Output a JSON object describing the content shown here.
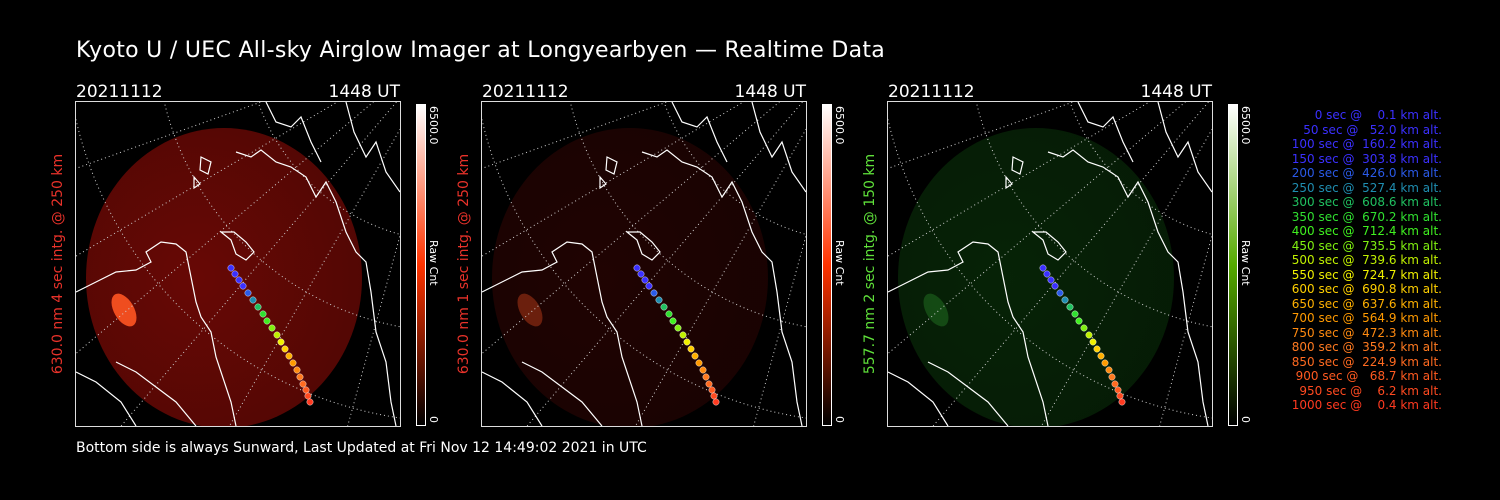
{
  "title": "Kyoto U / UEC All-sky Airglow Imager at Longyearbyen — Realtime Data",
  "footer": "Bottom side is always Sunward, Last Updated at Fri Nov 12 14:49:02 2021 in UTC",
  "panels": [
    {
      "date": "20211112",
      "time": "1448 UT",
      "ylabel": "630.0 nm 4 sec intg. @ 250 km",
      "label_color": "#e8322a",
      "colorbar": {
        "max": "6500.0",
        "min": "0",
        "unit": "Raw Cnt",
        "gradient": [
          "#000000",
          "#ff3300",
          "#ffffff"
        ]
      },
      "image_color": "#7a0a06",
      "image_intensity": 0.85,
      "aurora_patch": true
    },
    {
      "date": "20211112",
      "time": "1448 UT",
      "ylabel": "630.0 nm 1 sec intg. @ 250 km",
      "label_color": "#e8322a",
      "colorbar": {
        "max": "6500.0",
        "min": "0",
        "unit": "Raw Cnt",
        "gradient": [
          "#000000",
          "#ff3300",
          "#ffffff"
        ]
      },
      "image_color": "#3a0604",
      "image_intensity": 0.55,
      "aurora_patch": true
    },
    {
      "date": "20211112",
      "time": "1448 UT",
      "ylabel": "557.7 nm 2 sec intg. @ 150 km",
      "label_color": "#5fe03a",
      "colorbar": {
        "max": "6500.0",
        "min": "0",
        "unit": "Raw Cnt",
        "gradient": [
          "#000000",
          "#55aa00",
          "#ffffff"
        ]
      },
      "image_color": "#0b3a0b",
      "image_intensity": 0.6,
      "aurora_patch": true
    }
  ],
  "legend": [
    {
      "text": "0 sec @    0.1 km alt.",
      "color": "#3b30ff"
    },
    {
      "text": "50 sec @   52.0 km alt.",
      "color": "#3b30ff"
    },
    {
      "text": "100 sec @  160.2 km alt.",
      "color": "#3b30ff"
    },
    {
      "text": "150 sec @  303.8 km alt.",
      "color": "#3b30ff"
    },
    {
      "text": "200 sec @  426.0 km alt.",
      "color": "#2a5ae8"
    },
    {
      "text": "250 sec @  527.4 km alt.",
      "color": "#1f8db0"
    },
    {
      "text": "300 sec @  608.6 km alt.",
      "color": "#20c060"
    },
    {
      "text": "350 sec @  670.2 km alt.",
      "color": "#30e030"
    },
    {
      "text": "400 sec @  712.4 km alt.",
      "color": "#40f020"
    },
    {
      "text": "450 sec @  735.5 km alt.",
      "color": "#80f010"
    },
    {
      "text": "500 sec @  739.6 km alt.",
      "color": "#c0f000"
    },
    {
      "text": "550 sec @  724.7 km alt.",
      "color": "#f0f000"
    },
    {
      "text": "600 sec @  690.8 km alt.",
      "color": "#ffd000"
    },
    {
      "text": "650 sec @  637.6 km alt.",
      "color": "#ffb000"
    },
    {
      "text": "700 sec @  564.9 km alt.",
      "color": "#ff9a00"
    },
    {
      "text": "750 sec @  472.3 km alt.",
      "color": "#ff8a10"
    },
    {
      "text": "800 sec @  359.2 km alt.",
      "color": "#ff7a20"
    },
    {
      "text": "850 sec @  224.9 km alt.",
      "color": "#ff6a20"
    },
    {
      "text": "900 sec @   68.7 km alt.",
      "color": "#ff5a20"
    },
    {
      "text": "950 sec @    6.2 km alt.",
      "color": "#ff4a20"
    },
    {
      "text": "1000 sec @    0.4 km alt.",
      "color": "#ff3a20"
    }
  ]
}
